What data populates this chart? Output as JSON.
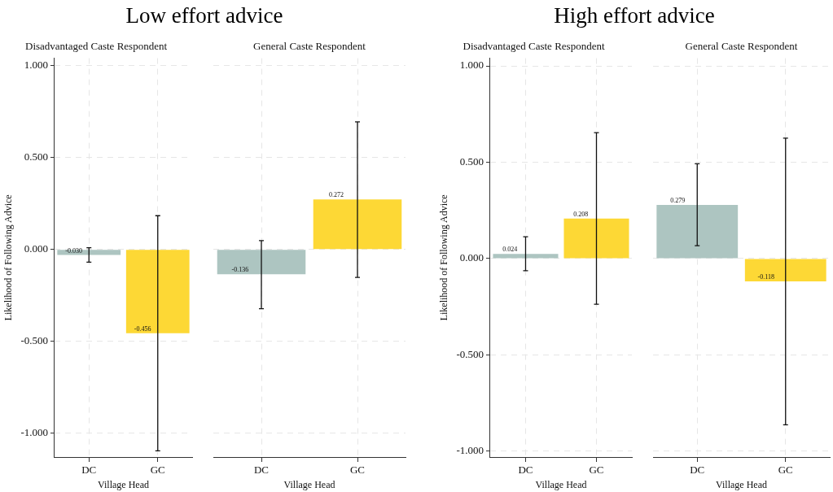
{
  "chart_data": [
    {
      "type": "bar",
      "title": "Low effort advice",
      "subtitle": "Disadvantaged Caste Respondent",
      "xlabel": "Village Head",
      "ylabel": "Likelihood of Following Advice",
      "categories": [
        "DC",
        "GC"
      ],
      "values": [
        -0.03,
        -0.456
      ],
      "colors": [
        "#adc5c1",
        "#fdd835"
      ],
      "errors": [
        [
          -0.07,
          0.009
        ],
        [
          -1.096,
          0.183
        ]
      ],
      "value_labels": [
        "-0.030",
        "-0.456"
      ],
      "grid": true,
      "ylim": [
        -1.13,
        1.04
      ],
      "yticks": [
        {
          "value": -1,
          "label": "-1.000"
        },
        {
          "value": -0.5,
          "label": "-0.500"
        },
        {
          "value": 0,
          "label": "0.000"
        },
        {
          "value": 0.5,
          "label": "0.500"
        },
        {
          "value": 1,
          "label": "1.000"
        }
      ]
    },
    {
      "type": "bar",
      "subtitle": "General Caste Respondent",
      "xlabel": "Village Head",
      "categories": [
        "DC",
        "GC"
      ],
      "values": [
        -0.136,
        0.272
      ],
      "colors": [
        "#adc5c1",
        "#fdd835"
      ],
      "errors": [
        [
          -0.323,
          0.048
        ],
        [
          -0.153,
          0.694
        ]
      ],
      "data_labels": true,
      "grid": true,
      "tick_labels": "x",
      "ylim": [
        -1.13,
        1.04
      ],
      "yticks": [
        {
          "value": -1,
          "label": null
        },
        {
          "value": -0.5,
          "label": null
        },
        {
          "value": 0,
          "label": null
        },
        {
          "value": 0.5,
          "label": null
        },
        {
          "value": 1,
          "label": null
        }
      ]
    },
    {
      "type": "bar",
      "title": "High effort advice",
      "subtitle": "Disadvantaged Caste Respondent",
      "xlabel": "Village Head",
      "ylabel": "Likelihood of Following Advice",
      "categories": [
        "DC",
        "GC"
      ],
      "values": [
        0.024,
        0.208
      ],
      "colors": [
        "#adc5c1",
        "#fdd835"
      ],
      "errors": [
        [
          -0.063,
          0.113
        ],
        [
          -0.237,
          0.654
        ]
      ],
      "data_labels": true,
      "grid": true,
      "ylim": [
        -1.03,
        1.04
      ],
      "yticks": [
        {
          "value": -1,
          "label": "-1.000"
        },
        {
          "value": -0.5,
          "label": "-0.500"
        },
        {
          "value": 0,
          "label": "0.000"
        },
        {
          "value": 0.5,
          "label": "0.500"
        },
        {
          "value": 1,
          "label": "1.000"
        }
      ]
    },
    {
      "type": "bar",
      "subtitle": "General Caste Respondent",
      "xlabel": "Village Head",
      "categories": [
        "DC",
        "GC"
      ],
      "values": [
        0.279,
        -0.118
      ],
      "colors": [
        "#adc5c1",
        "#fdd835"
      ],
      "errors": [
        [
          0.067,
          0.492
        ],
        [
          -0.863,
          0.625
        ]
      ],
      "data_labels": true,
      "grid": true,
      "tick_labels": "x",
      "ylim": [
        -1.03,
        1.04
      ],
      "yticks": [
        {
          "value": -1,
          "label": null
        },
        {
          "value": -0.5,
          "label": null
        },
        {
          "value": 0,
          "label": null
        },
        {
          "value": 0.5,
          "label": null
        },
        {
          "value": 1,
          "label": null
        }
      ]
    }
  ]
}
